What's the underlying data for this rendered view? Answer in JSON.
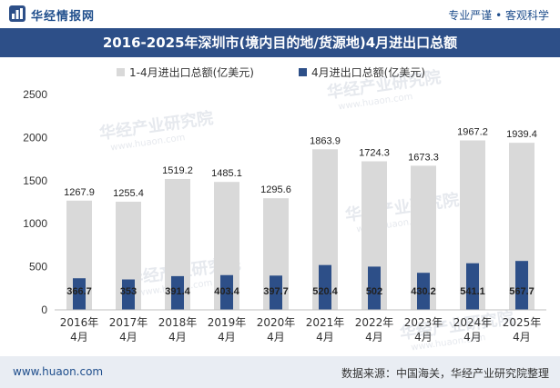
{
  "header": {
    "brand": "华经情报网",
    "slogan": "专业严谨 • 客观科学"
  },
  "footer": {
    "site": "www.huaon.com",
    "source": "数据来源：中国海关，华经产业研究院整理"
  },
  "watermark": {
    "text": "华经产业研究院",
    "url": "www.huaon.com"
  },
  "colors": {
    "title_band": "#2d4f88",
    "series1": "#d9d9d9",
    "series2": "#2d4f88",
    "brand": "#1f4e8c"
  },
  "chart_data": {
    "type": "bar",
    "title": "2016-2025年深圳市(境内目的地/货源地)4月进出口总额",
    "categories": [
      "2016年\n4月",
      "2017年\n4月",
      "2018年\n4月",
      "2019年\n4月",
      "2020年\n4月",
      "2021年\n4月",
      "2022年\n4月",
      "2023年\n4月",
      "2024年\n4月",
      "2025年\n4月"
    ],
    "series": [
      {
        "name": "1-4月进出口总额(亿美元)",
        "values": [
          1267.9,
          1255.4,
          1519.2,
          1485.1,
          1295.6,
          1863.9,
          1724.3,
          1673.3,
          1967.2,
          1939.4
        ]
      },
      {
        "name": "4月进出口总额(亿美元)",
        "values": [
          366.7,
          353,
          391.4,
          403.4,
          397.7,
          520.4,
          502,
          430.2,
          541.1,
          567.7
        ]
      }
    ],
    "value_labels": [
      [
        "1267.9",
        "1255.4",
        "1519.2",
        "1485.1",
        "1295.6",
        "1863.9",
        "1724.3",
        "1673.3",
        "1967.2",
        "1939.4"
      ],
      [
        "366.7",
        "353",
        "391.4",
        "403.4",
        "397.7",
        "520.4",
        "502",
        "430.2",
        "541.1",
        "567.7"
      ]
    ],
    "ylim": [
      0,
      2500
    ],
    "yticks": [
      0,
      500,
      1000,
      1500,
      2000,
      2500
    ],
    "grid": false,
    "legend": "top",
    "xlabel": "",
    "ylabel": ""
  }
}
